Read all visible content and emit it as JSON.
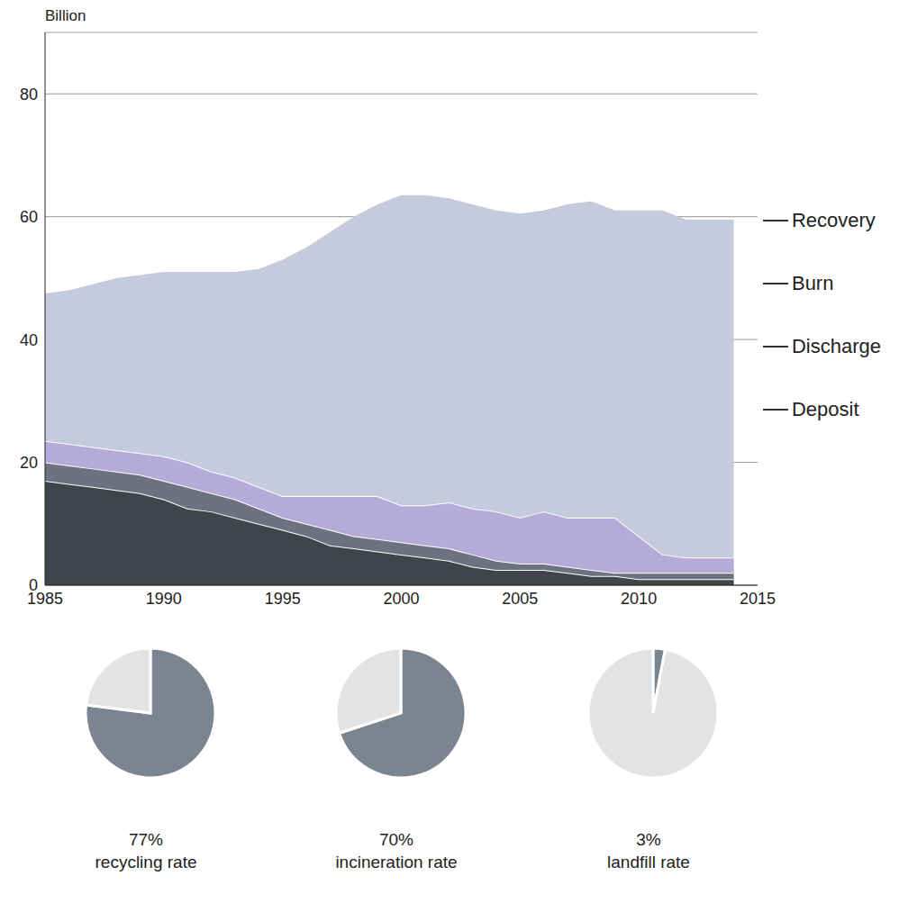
{
  "chart_data": [
    {
      "type": "area",
      "ylabel": "Billion",
      "stacked": true,
      "grid": true,
      "legend": "right",
      "x": [
        1985,
        1986,
        1987,
        1988,
        1989,
        1990,
        1991,
        1992,
        1993,
        1994,
        1995,
        1996,
        1997,
        1998,
        1999,
        2000,
        2001,
        2002,
        2003,
        2004,
        2005,
        2006,
        2007,
        2008,
        2009,
        2010,
        2011,
        2012,
        2013,
        2014
      ],
      "xlim": [
        1985,
        2015
      ],
      "xticks": [
        1985,
        1990,
        1995,
        2000,
        2005,
        2010,
        2015
      ],
      "ylim": [
        0,
        90
      ],
      "yticks": [
        0,
        20,
        40,
        60,
        80
      ],
      "series": [
        {
          "name": "Deposit",
          "color": "#42444b",
          "values": [
            17,
            16.5,
            16,
            15.5,
            15,
            14,
            12.5,
            12,
            11,
            10,
            9,
            8,
            6.5,
            6,
            5.5,
            5,
            4.5,
            4,
            3,
            2.5,
            2.5,
            2.5,
            2,
            1.5,
            1.5,
            1,
            1,
            1,
            1,
            1
          ]
        },
        {
          "name": "Discharge",
          "color": "#6e7180",
          "values": [
            3,
            3,
            3,
            3,
            3,
            3,
            3.5,
            3,
            3,
            2.5,
            2,
            2,
            2.5,
            2,
            2,
            2,
            2,
            2,
            2,
            1.5,
            1,
            1,
            1,
            1,
            0.5,
            1,
            1,
            1,
            1,
            1
          ]
        },
        {
          "name": "Burn",
          "color": "#b4abd8",
          "values": [
            3.5,
            3.5,
            3.5,
            3.5,
            3.5,
            4,
            4,
            3.5,
            3.5,
            3.5,
            3.5,
            4.5,
            5.5,
            6.5,
            7,
            6,
            6.5,
            7.5,
            7.5,
            8,
            7.5,
            8.5,
            8,
            8.5,
            9,
            6,
            3,
            2.5,
            2.5,
            2.5
          ]
        },
        {
          "name": "Recovery",
          "color": "#c5cadd",
          "values": [
            24,
            25,
            26.5,
            28,
            29,
            30,
            31,
            32.5,
            33.5,
            35.5,
            38.5,
            40.5,
            43,
            45.5,
            47.5,
            50.5,
            50.5,
            49.5,
            49.5,
            49,
            49.5,
            49,
            51,
            51.5,
            50,
            53,
            56,
            55,
            55,
            55
          ]
        }
      ]
    },
    {
      "type": "pie",
      "title": "recycling rate",
      "values": [
        77,
        23
      ],
      "value_labels": [
        "77%",
        null
      ],
      "colors": [
        "#7b8592",
        "#e2e3e5"
      ]
    },
    {
      "type": "pie",
      "title": "incineration rate",
      "values": [
        70,
        30
      ],
      "value_labels": [
        "70%",
        null
      ],
      "colors": [
        "#7b8592",
        "#e2e3e5"
      ]
    },
    {
      "type": "pie",
      "title": "landfill rate",
      "values": [
        3,
        97
      ],
      "value_labels": [
        "3%",
        null
      ],
      "colors": [
        "#7b8592",
        "#e2e3e5"
      ]
    }
  ]
}
